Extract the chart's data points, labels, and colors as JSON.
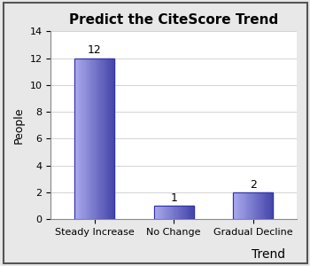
{
  "title": "Predict the CiteScore Trend",
  "categories": [
    "Steady Increase",
    "No Change",
    "Gradual Decline"
  ],
  "values": [
    12,
    1,
    2
  ],
  "ylabel": "People",
  "xlabel": "Trend",
  "ylim": [
    0,
    14
  ],
  "yticks": [
    0,
    2,
    4,
    6,
    8,
    10,
    12,
    14
  ],
  "bar_color_light": "#aaaaee",
  "bar_color_dark": "#4444aa",
  "background_color": "#e8e8e8",
  "plot_bg_color": "#ffffff",
  "border_color": "#888888",
  "title_fontsize": 11,
  "axis_label_fontsize": 9,
  "tick_fontsize": 8,
  "annotation_fontsize": 9,
  "xlabel_fontsize": 10
}
